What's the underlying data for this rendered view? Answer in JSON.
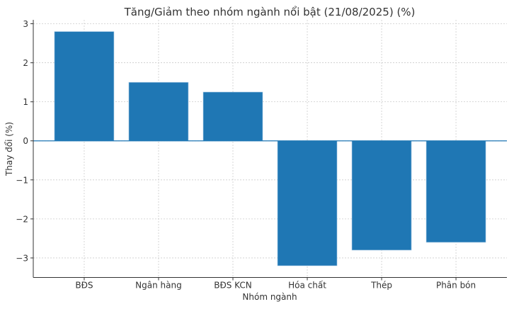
{
  "chart_data": {
    "type": "bar",
    "title": "Tăng/Giảm theo nhóm ngành nổi bật (21/08/2025) (%)",
    "xlabel": "Nhóm ngành",
    "ylabel": "Thay đổi (%)",
    "categories": [
      "BĐS",
      "Ngân hàng",
      "BĐS KCN",
      "Hóa chất",
      "Thép",
      "Phân bón"
    ],
    "values": [
      2.8,
      1.5,
      1.25,
      -3.2,
      -2.8,
      -2.6
    ],
    "ylim": [
      -3.5,
      3.1
    ],
    "yticks": [
      -3,
      -2,
      -1,
      0,
      1,
      2,
      3
    ],
    "ytick_labels": [
      "−3",
      "−2",
      "−1",
      "0",
      "1",
      "2",
      "3"
    ],
    "grid": true,
    "bar_color": "#1f77b4"
  }
}
